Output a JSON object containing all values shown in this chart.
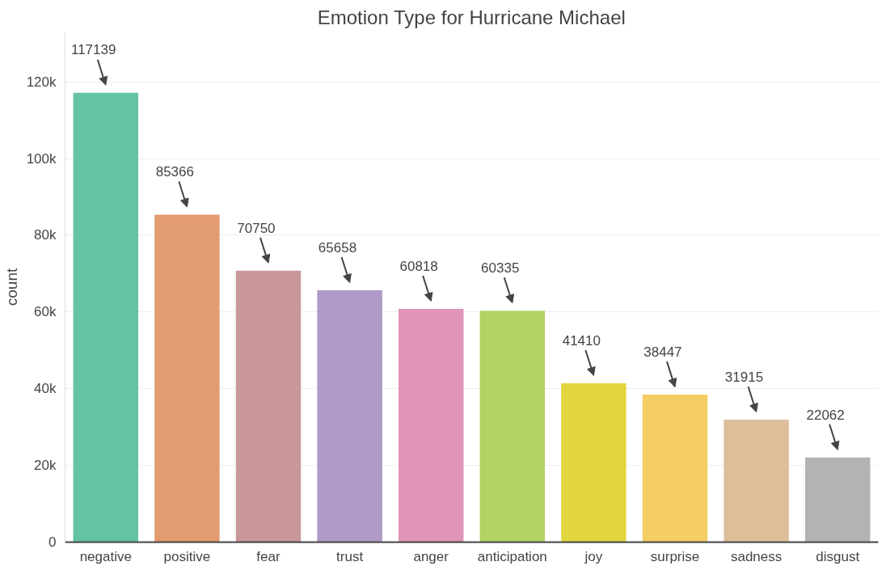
{
  "chart_data": {
    "type": "bar",
    "title": "Emotion Type for Hurricane Michael",
    "ylabel": "count",
    "categories": [
      "negative",
      "positive",
      "fear",
      "trust",
      "anger",
      "anticipation",
      "joy",
      "surprise",
      "sadness",
      "disgust"
    ],
    "values": [
      117139,
      85366,
      70750,
      65658,
      60818,
      60335,
      41410,
      38447,
      31915,
      22062
    ],
    "colors": [
      "#64c2a5",
      "#e39b70",
      "#c9979a",
      "#b09ac8",
      "#e094b8",
      "#b1d465",
      "#e2d63e",
      "#f4cd63",
      "#dcbe9a",
      "#b3b3b3"
    ],
    "ylim": [
      0,
      133000
    ],
    "yticks": [
      {
        "value": 0,
        "label": "0"
      },
      {
        "value": 20000,
        "label": "20k"
      },
      {
        "value": 40000,
        "label": "40k"
      },
      {
        "value": 60000,
        "label": "60k"
      },
      {
        "value": 80000,
        "label": "80k"
      },
      {
        "value": 100000,
        "label": "100k"
      },
      {
        "value": 120000,
        "label": "120k"
      }
    ],
    "grid": "y",
    "data_labels": true
  }
}
